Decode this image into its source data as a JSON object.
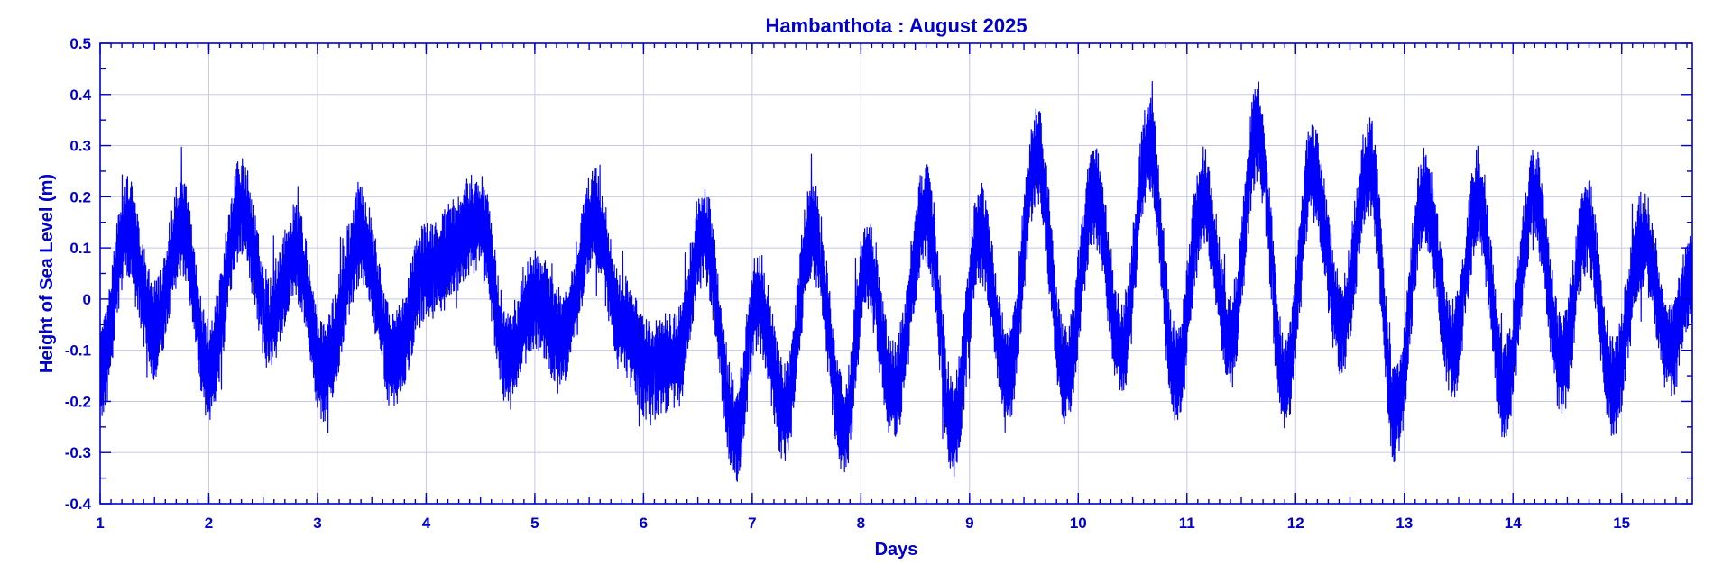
{
  "chart_data": {
    "type": "line",
    "title": "Hambanthota : August 2025",
    "xlabel": "Days",
    "ylabel": "Height of Sea Level (m)",
    "xlim": [
      1,
      15.65
    ],
    "ylim": [
      -0.4,
      0.5
    ],
    "x_ticks": [
      1,
      2,
      3,
      4,
      5,
      6,
      7,
      8,
      9,
      10,
      11,
      12,
      13,
      14,
      15
    ],
    "y_ticks": [
      0.5,
      0.4,
      0.3,
      0.2,
      0.1,
      0,
      -0.1,
      -0.2,
      -0.3,
      -0.4
    ],
    "y_tick_labels": [
      "0.5",
      "0.4",
      "0.3",
      "0.2",
      "0.1",
      "0",
      "-0.1",
      "-0.2",
      "-0.3",
      "-0.4"
    ],
    "grid": true,
    "colors": {
      "series": "#0000ff",
      "text": "#0000cc",
      "grid": "#c8c8e6"
    },
    "series": [
      {
        "x": [
          1.0,
          1.25,
          1.5,
          1.75,
          2.0,
          2.3,
          2.55,
          2.8,
          3.05,
          3.4,
          3.7,
          4.0,
          4.5,
          4.75,
          5.0,
          5.25,
          5.55,
          5.8,
          6.05,
          6.3,
          6.55,
          6.85,
          7.05,
          7.3,
          7.55,
          7.85,
          8.05,
          8.3,
          8.6,
          8.85,
          9.1,
          9.35,
          9.62,
          9.88,
          10.15,
          10.4,
          10.65,
          10.9,
          11.15,
          11.4,
          11.65,
          11.9,
          12.15,
          12.42,
          12.68,
          12.92,
          13.18,
          13.45,
          13.68,
          13.92,
          14.2,
          14.45,
          14.68,
          14.92,
          15.2,
          15.45,
          15.65
        ],
        "y": [
          -0.15,
          0.14,
          -0.06,
          0.14,
          -0.14,
          0.18,
          -0.04,
          0.09,
          -0.14,
          0.12,
          -0.12,
          0.05,
          0.15,
          -0.12,
          0.0,
          -0.08,
          0.16,
          -0.05,
          -0.14,
          -0.12,
          0.13,
          -0.26,
          0.0,
          -0.22,
          0.14,
          -0.25,
          0.07,
          -0.18,
          0.17,
          -0.25,
          0.13,
          -0.15,
          0.28,
          -0.15,
          0.2,
          -0.1,
          0.3,
          -0.15,
          0.2,
          -0.08,
          0.33,
          -0.17,
          0.25,
          -0.05,
          0.26,
          -0.23,
          0.2,
          -0.1,
          0.2,
          -0.18,
          0.2,
          -0.13,
          0.15,
          -0.17,
          0.12,
          -0.1,
          0.05
        ]
      }
    ]
  }
}
